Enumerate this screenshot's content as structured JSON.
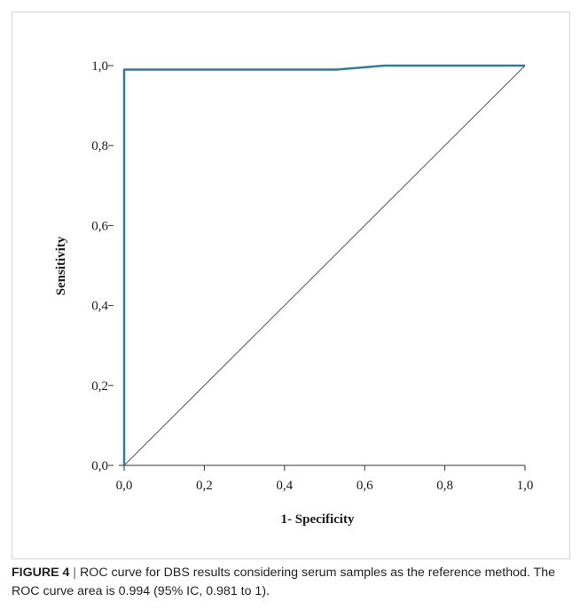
{
  "chart_data": {
    "type": "line",
    "xlabel": "1- Specificity",
    "ylabel": "Sensitivity",
    "xlim": [
      0,
      1
    ],
    "ylim": [
      0,
      1
    ],
    "xticks": [
      "0,0",
      "0,2",
      "0,4",
      "0,6",
      "0,8",
      "1,0"
    ],
    "yticks": [
      "0,0",
      "0,2",
      "0,4",
      "0,6",
      "0,8",
      "1,0"
    ],
    "grid": false,
    "series": [
      {
        "color": "#2e7d9a",
        "x": [
          0,
          0,
          0.53,
          0.65,
          1.0
        ],
        "y": [
          0,
          0.99,
          0.99,
          1.0,
          1.0
        ]
      },
      {
        "color": "#555555",
        "x": [
          0,
          1
        ],
        "y": [
          0,
          1
        ]
      }
    ]
  },
  "caption": {
    "label": "FIGURE 4",
    "separator": "|",
    "text": "ROC curve for DBS results considering serum samples as the reference method. The ROC curve area is 0.994 (95% IC, 0.981 to 1)."
  }
}
